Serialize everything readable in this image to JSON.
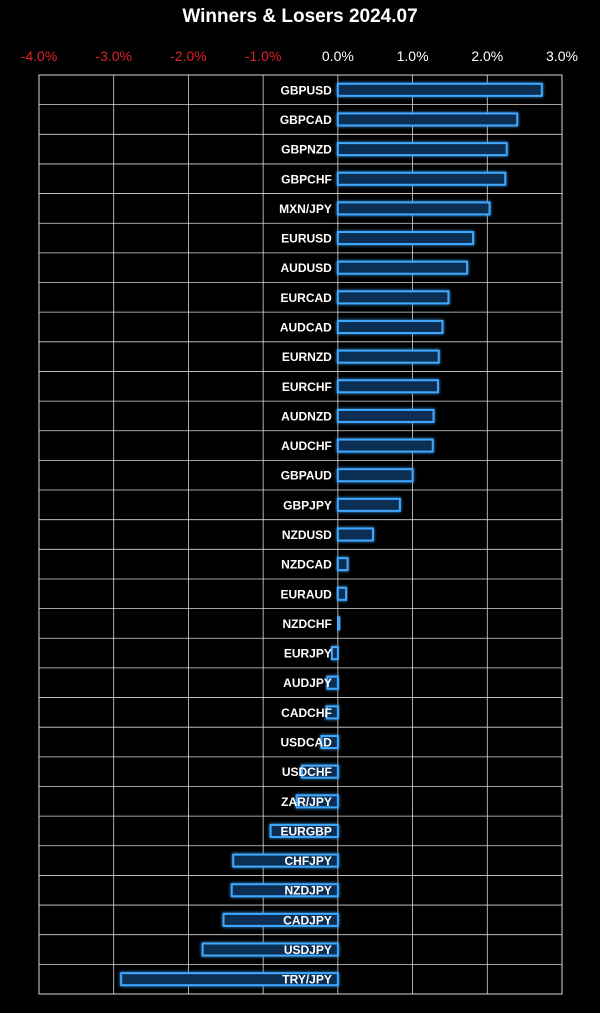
{
  "chart_data": {
    "type": "bar",
    "orientation": "horizontal",
    "title": "Winners & Losers 2024.07",
    "xlim": [
      -4.0,
      3.0
    ],
    "x_ticks": [
      "-4.0%",
      "-3.0%",
      "-2.0%",
      "-1.0%",
      "0.0%",
      "1.0%",
      "2.0%",
      "3.0%"
    ],
    "x_tick_values": [
      -4.0,
      -3.0,
      -2.0,
      -1.0,
      0.0,
      1.0,
      2.0,
      3.0
    ],
    "grid": true,
    "colors": {
      "background": "#000000",
      "bar_fill": "#0d2f52",
      "bar_edge": "#3fa8ff",
      "grid": "#d8d8d8",
      "positive_tick": "#ffffff",
      "negative_tick": "#e0202a",
      "label": "#ffffff"
    },
    "categories": [
      "GBPUSD",
      "GBPCAD",
      "GBPNZD",
      "GBPCHF",
      "MXN/JPY",
      "EURUSD",
      "AUDUSD",
      "EURCAD",
      "AUDCAD",
      "EURNZD",
      "EURCHF",
      "AUDNZD",
      "AUDCHF",
      "GBPAUD",
      "GBPJPY",
      "NZDUSD",
      "NZDCAD",
      "EURAUD",
      "NZDCHF",
      "EURJPY",
      "AUDJPY",
      "CADCHF",
      "USDCAD",
      "USDCHF",
      "ZAR/JPY",
      "EURGBP",
      "CHFJPY",
      "NZDJPY",
      "CADJPY",
      "USDJPY",
      "TRY/JPY"
    ],
    "values": [
      2.73,
      2.4,
      2.26,
      2.24,
      2.03,
      1.81,
      1.73,
      1.48,
      1.4,
      1.35,
      1.34,
      1.28,
      1.27,
      1.0,
      0.83,
      0.47,
      0.13,
      0.11,
      0.02,
      -0.08,
      -0.14,
      -0.15,
      -0.22,
      -0.48,
      -0.55,
      -0.9,
      -1.4,
      -1.42,
      -1.53,
      -1.81,
      -2.9
    ]
  }
}
